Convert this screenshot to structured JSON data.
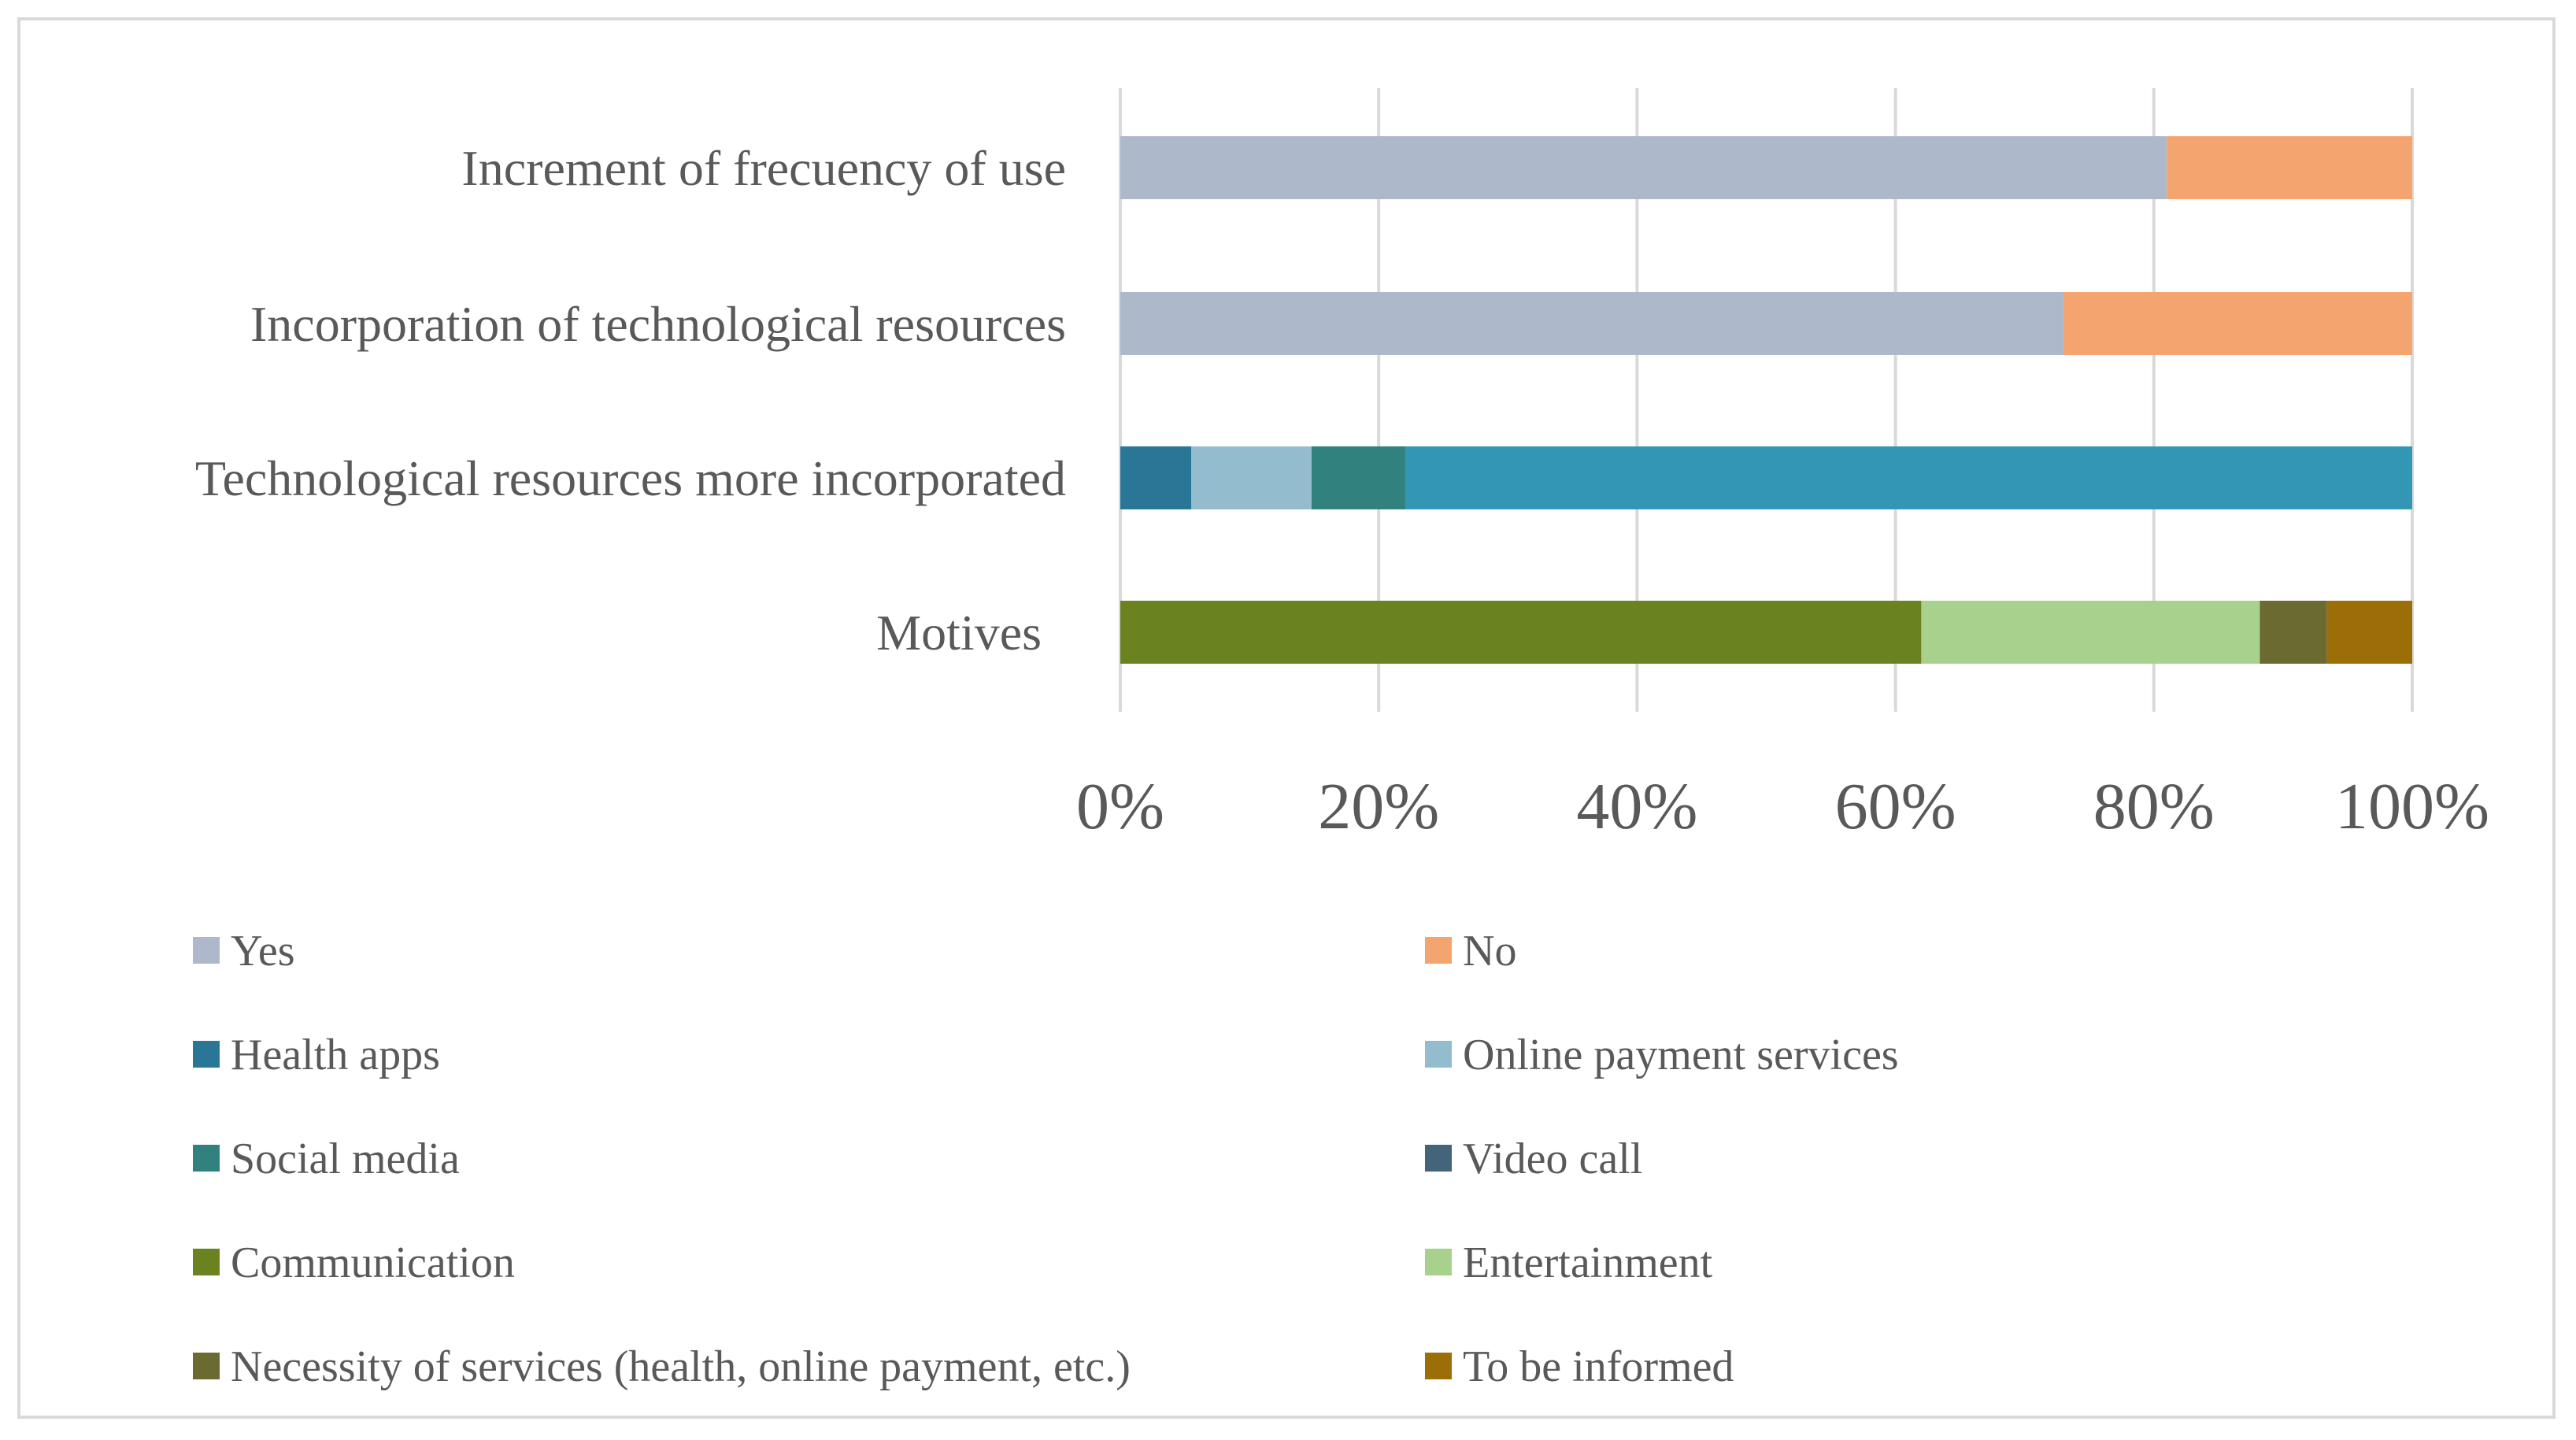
{
  "chart_data": {
    "type": "bar",
    "orientation": "horizontal",
    "stacked": "percent",
    "categories": [
      "Increment of frecuency of use",
      "Incorporation of technological resources",
      "Technological resources more incorporated",
      "Motives"
    ],
    "series": [
      {
        "name": "Yes",
        "color": "#adb9ca",
        "values": [
          81,
          73,
          0,
          0
        ]
      },
      {
        "name": "No",
        "color": "#f4a46e",
        "values": [
          19,
          27,
          0,
          0
        ]
      },
      {
        "name": "Health apps",
        "color": "#2a7697",
        "values": [
          0,
          0,
          5.5,
          0
        ]
      },
      {
        "name": "Online payment services",
        "color": "#94bccf",
        "values": [
          0,
          0,
          9.3,
          0
        ]
      },
      {
        "name": "Social media",
        "color": "#31817f",
        "values": [
          0,
          0,
          7.3,
          0
        ]
      },
      {
        "name": "Video call",
        "color": "#3396b5",
        "values": [
          0,
          0,
          77.9,
          0
        ]
      },
      {
        "name": "Communication",
        "color": "#6b8221",
        "values": [
          0,
          0,
          0,
          62
        ]
      },
      {
        "name": "Entertainment",
        "color": "#a9d18e",
        "values": [
          0,
          0,
          0,
          26.2
        ]
      },
      {
        "name": "Necessity of services (health, online payment, etc.)",
        "color": "#6b6a30",
        "values": [
          0,
          0,
          0,
          5.2
        ]
      },
      {
        "name": "To be informed",
        "color": "#9c6e08",
        "values": [
          0,
          0,
          0,
          6.6
        ]
      }
    ],
    "legend_swatch_colors": {
      "Video call": "#44647a"
    },
    "xlim": [
      0,
      100
    ],
    "xticks": [
      "0%",
      "20%",
      "40%",
      "60%",
      "80%",
      "100%"
    ],
    "grid": true,
    "legend_position": "bottom",
    "title": "",
    "xlabel": "",
    "ylabel": ""
  }
}
